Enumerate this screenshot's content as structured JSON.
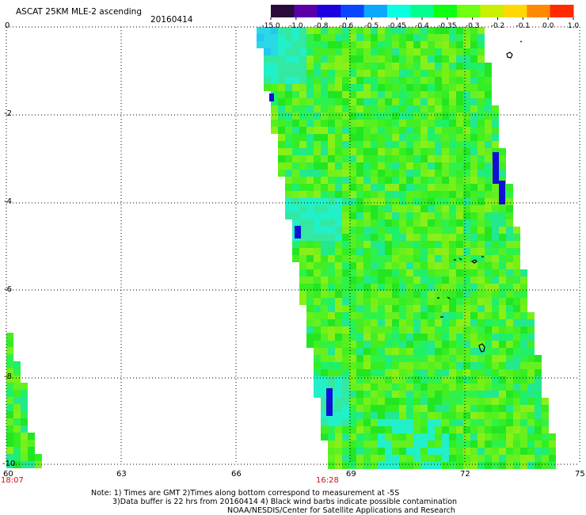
{
  "title": "ASCAT 25KM MLE-2 ascending",
  "date": "20160414",
  "colorbar": {
    "tick_labels": [
      "-15.0",
      "-1.0",
      "-0.8",
      "-0.6",
      "-0.5",
      "-0.45",
      "-0.4",
      "-0.35",
      "-0.3",
      "-0.2",
      "-0.1",
      "0.0",
      "1.0"
    ],
    "colors": [
      "#2a0a3a",
      "#5a00a8",
      "#1c00e0",
      "#0a45ff",
      "#0aa8ff",
      "#0affe0",
      "#00ff90",
      "#10ff10",
      "#70ff10",
      "#c8f000",
      "#ffd800",
      "#ff8a00",
      "#ff2a00"
    ]
  },
  "axes": {
    "x_labels": [
      "60",
      "63",
      "66",
      "69",
      "72",
      "75"
    ],
    "y_labels": [
      "0",
      "-2",
      "-4",
      "-6",
      "-8",
      "-10"
    ],
    "time_labels": [
      "18:07",
      "16:28"
    ]
  },
  "notes": [
    "Note: 1) Times are GMT 2)Times along bottom correspond to measurement at -5S",
    "3)Data buffer is 22 hrs from 20160414 4) Black wind barbs indicate possible contamination",
    "NOAA/NESDIS/Center for Satellite Applications and Research"
  ],
  "colors": {
    "swath_base": "#44ee22",
    "time_label": "#cc1111",
    "land_outline": "#000000"
  }
}
